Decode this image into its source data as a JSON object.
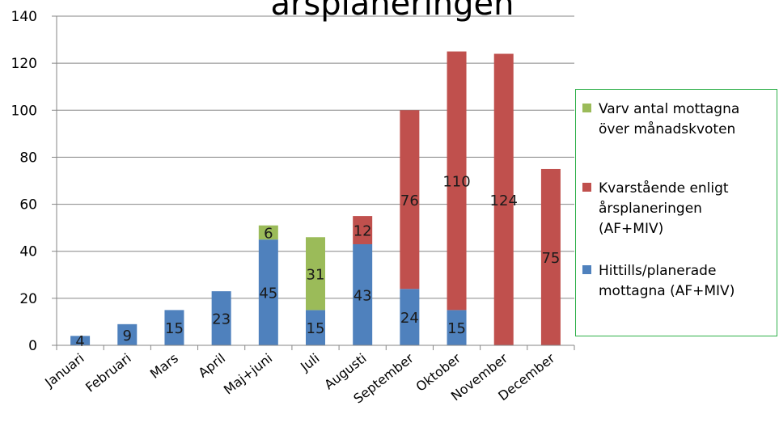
{
  "chart_data": {
    "type": "bar",
    "stacked": true,
    "title": "årsplaneringen",
    "categories": [
      "Januari",
      "Februari",
      "Mars",
      "April",
      "Maj+juni",
      "Juli",
      "Augusti",
      "September",
      "Oktober",
      "November",
      "December"
    ],
    "series": [
      {
        "name": "Hittills/planerade mottagna (AF+MIV)",
        "color": "#4f81bd",
        "values": [
          4,
          9,
          15,
          23,
          45,
          15,
          43,
          24,
          15,
          0,
          0
        ],
        "labels": [
          "4",
          "9",
          "15",
          "23",
          "45",
          "15",
          "43",
          "24",
          "15",
          "",
          ""
        ]
      },
      {
        "name": "Kvarstående enligt årsplaneringen (AF+MIV)",
        "color": "#c0504d",
        "values": [
          0,
          0,
          0,
          0,
          0,
          0,
          12,
          76,
          110,
          124,
          75
        ],
        "labels": [
          "",
          "",
          "",
          "",
          "",
          "",
          "12",
          "76",
          "110",
          "124",
          "75"
        ]
      },
      {
        "name": "Varv antal mottagna över månadskvoten",
        "color": "#9bbb59",
        "values": [
          0,
          0,
          0,
          0,
          6,
          31,
          0,
          0,
          0,
          0,
          0
        ],
        "labels": [
          "",
          "",
          "",
          "",
          "6",
          "31",
          "",
          "",
          "",
          "",
          ""
        ]
      }
    ],
    "yticks": [
      "0",
      "20",
      "40",
      "60",
      "80",
      "100",
      "120",
      "140"
    ],
    "ylim": [
      0,
      140
    ],
    "grid": true,
    "legend_position": "right"
  },
  "legend": {
    "items": [
      {
        "label": "Varv antal mottagna\növer månadskvoten",
        "color": "#9bbb59"
      },
      {
        "label": "Kvarstående enligt\nårsplaneringen\n(AF+MIV)",
        "color": "#c0504d"
      },
      {
        "label": "Hittills/planerade\nmottagna (AF+MIV)",
        "color": "#4f81bd"
      }
    ]
  }
}
